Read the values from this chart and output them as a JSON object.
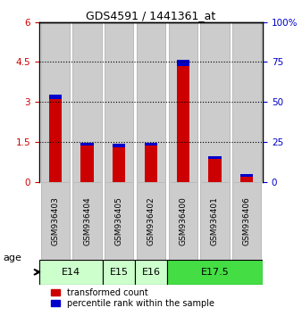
{
  "title": "GDS4591 / 1441361_at",
  "samples": [
    "GSM936403",
    "GSM936404",
    "GSM936405",
    "GSM936402",
    "GSM936400",
    "GSM936401",
    "GSM936406"
  ],
  "red_values": [
    3.1,
    1.35,
    1.3,
    1.35,
    4.35,
    0.85,
    0.2
  ],
  "blue_values_scaled": [
    0.18,
    0.12,
    0.12,
    0.12,
    0.22,
    0.1,
    0.1
  ],
  "left_ylim": [
    0,
    6
  ],
  "left_yticks": [
    0,
    1.5,
    3.0,
    4.5,
    6
  ],
  "left_yticklabels": [
    "0",
    "1.5",
    "3",
    "4.5",
    "6"
  ],
  "right_ylim": [
    0,
    100
  ],
  "right_yticks": [
    0,
    25,
    50,
    75,
    100
  ],
  "right_yticklabels": [
    "0",
    "25",
    "50",
    "75",
    "100%"
  ],
  "hline_values": [
    1.5,
    3.0,
    4.5
  ],
  "age_groups": [
    {
      "label": "E14",
      "indices": [
        0,
        1
      ],
      "color": "#ccffcc"
    },
    {
      "label": "E15",
      "indices": [
        2
      ],
      "color": "#ccffcc"
    },
    {
      "label": "E16",
      "indices": [
        3
      ],
      "color": "#ccffcc"
    },
    {
      "label": "E17.5",
      "indices": [
        4,
        5,
        6
      ],
      "color": "#44dd44"
    }
  ],
  "red_color": "#cc0000",
  "blue_color": "#0000cc",
  "bar_bg_color": "#cccccc",
  "bar_bg_edge_color": "#aaaaaa",
  "left_tick_color": "#cc0000",
  "right_tick_color": "#0000cc",
  "bar_width": 0.4,
  "bg_bar_width": 0.9
}
